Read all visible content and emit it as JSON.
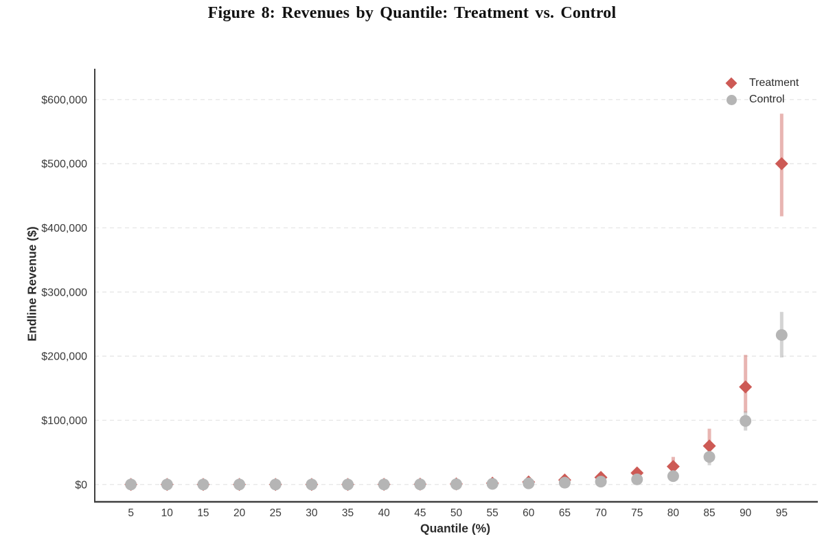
{
  "figure": {
    "title": "Figure 8: Revenues by Quantile: Treatment vs. Control"
  },
  "colors": {
    "treatment": "#cd5a55",
    "treatment_errorbar": "rgba(205,90,85,0.45)",
    "control": "#b5b5b5",
    "control_errorbar": "rgba(160,160,160,0.45)",
    "gridline": "#e7e7e7",
    "spine": "#3f3f3f",
    "tick_label": "#3a3a3a"
  },
  "chart_data": {
    "type": "scatter",
    "title": "Figure 8: Revenues by Quantile: Treatment vs. Control",
    "xlabel": "Quantile (%)",
    "ylabel": "Endline Revenue ($)",
    "x": [
      5,
      10,
      15,
      20,
      25,
      30,
      35,
      40,
      45,
      50,
      55,
      60,
      65,
      70,
      75,
      80,
      85,
      90,
      95
    ],
    "xlim": [
      0,
      100
    ],
    "ylim": [
      -27000,
      648000
    ],
    "y_ticks": [
      0,
      100000,
      200000,
      300000,
      400000,
      500000,
      600000
    ],
    "y_tick_labels": [
      "$0",
      "$100,000",
      "$200,000",
      "$300,000",
      "$400,000",
      "$500,000",
      "$600,000"
    ],
    "grid": "horizontal-dashed",
    "legend_position": "upper-right",
    "series": [
      {
        "name": "Treatment",
        "marker": "diamond",
        "color": "#cd5a55",
        "errorbar_color": "rgba(205,90,85,0.45)",
        "values": [
          0,
          0,
          0,
          0,
          0,
          0,
          100,
          200,
          400,
          800,
          2000,
          4000,
          7000,
          11000,
          18000,
          28000,
          60000,
          152000,
          500000
        ],
        "ci_low": [
          0,
          0,
          0,
          0,
          0,
          0,
          0,
          0,
          100,
          300,
          500,
          2000,
          3500,
          6000,
          11000,
          15000,
          34000,
          112000,
          418000
        ],
        "ci_high": [
          0,
          0,
          0,
          0,
          0,
          0,
          200,
          400,
          700,
          1300,
          3500,
          6500,
          11000,
          17000,
          26000,
          43000,
          87000,
          202000,
          578000
        ]
      },
      {
        "name": "Control",
        "marker": "circle",
        "color": "#b5b5b5",
        "errorbar_color": "rgba(160,160,160,0.45)",
        "values": [
          0,
          0,
          0,
          0,
          0,
          0,
          0,
          100,
          200,
          400,
          1000,
          1800,
          2800,
          4500,
          8000,
          13000,
          43000,
          99000,
          233000
        ],
        "ci_low": [
          0,
          0,
          0,
          0,
          0,
          0,
          0,
          0,
          100,
          200,
          500,
          1000,
          1800,
          2500,
          5000,
          8000,
          30000,
          84000,
          198000
        ],
        "ci_high": [
          0,
          0,
          0,
          0,
          0,
          0,
          100,
          200,
          300,
          600,
          1500,
          2600,
          3800,
          7000,
          11000,
          17000,
          56000,
          114000,
          269000
        ]
      }
    ]
  }
}
